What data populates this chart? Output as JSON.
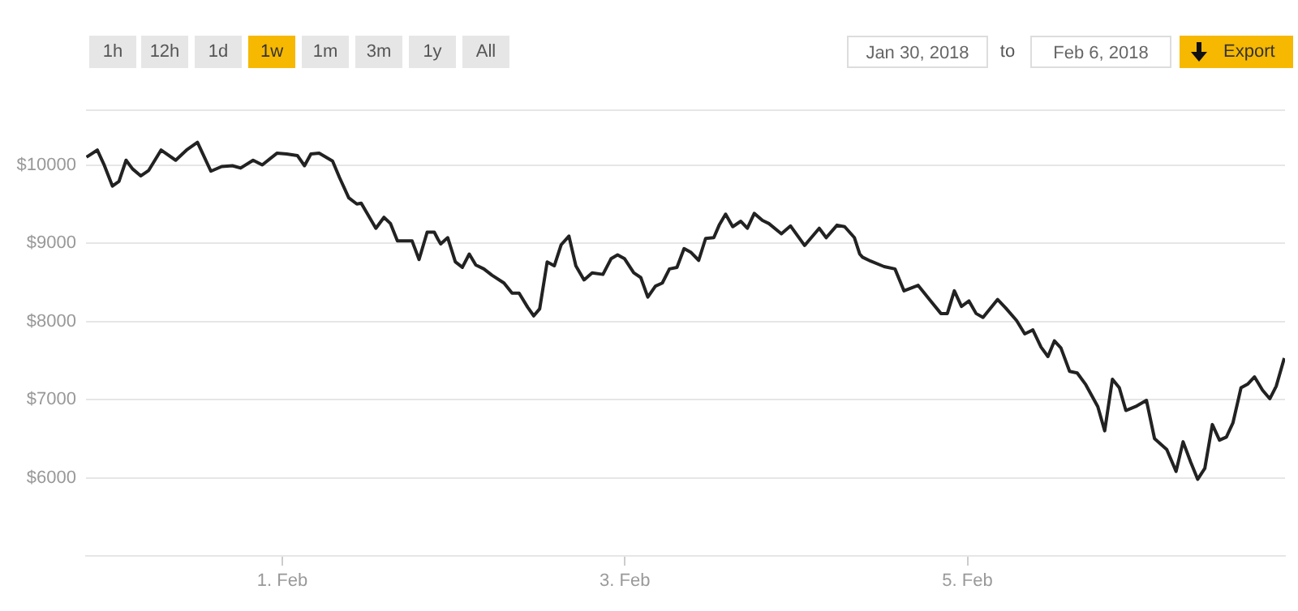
{
  "chart_data": {
    "type": "line",
    "grid": "y",
    "legend": false,
    "marker": "none",
    "line_style": "solid",
    "annotations": [
      "1h",
      "12h",
      "1d",
      "1w",
      "1m",
      "3m",
      "1y",
      "All",
      "Jan 30, 2018",
      "to",
      "Feb 6, 2018",
      "Export"
    ],
    "xlim": [
      "2018-01-30T20:30",
      "2018-02-06T20:30"
    ],
    "xticks": [
      {
        "value": "2018-02-01",
        "label": "1. Feb"
      },
      {
        "value": "2018-02-03",
        "label": "3. Feb"
      },
      {
        "value": "2018-02-05",
        "label": "5. Feb"
      }
    ],
    "ylim": [
      5000,
      10700
    ],
    "yticks": [
      {
        "value": 6000,
        "label": "$6000"
      },
      {
        "value": 7000,
        "label": "$7000"
      },
      {
        "value": 8000,
        "label": "$8000"
      },
      {
        "value": 9000,
        "label": "$9000"
      },
      {
        "value": 10000,
        "label": "$10000"
      }
    ],
    "series": [
      {
        "color": "#222222",
        "x": [
          "2018-01-30T20:34",
          "2018-01-30T22:05",
          "2018-01-30T23:00",
          "2018-01-31T00:12",
          "2018-01-31T01:07",
          "2018-01-31T02:07",
          "2018-01-31T03:01",
          "2018-01-31T04:10",
          "2018-01-31T05:17",
          "2018-01-31T07:01",
          "2018-01-31T09:04",
          "2018-01-31T10:35",
          "2018-01-31T12:07",
          "2018-01-31T14:00",
          "2018-01-31T15:31",
          "2018-01-31T17:01",
          "2018-01-31T18:10",
          "2018-01-31T19:55",
          "2018-01-31T21:12",
          "2018-01-31T23:15",
          "2018-02-01T00:37",
          "2018-02-01T02:07",
          "2018-02-01T03:07",
          "2018-02-01T04:01",
          "2018-02-01T05:10",
          "2018-02-01T07:03",
          "2018-02-01T08:01",
          "2018-02-01T09:19",
          "2018-02-01T10:27",
          "2018-02-01T11:04",
          "2018-02-01T13:07",
          "2018-02-01T14:15",
          "2018-02-01T15:10",
          "2018-02-01T16:08",
          "2018-02-01T18:11",
          "2018-02-01T19:10",
          "2018-02-01T20:18",
          "2018-02-01T21:18",
          "2018-02-01T21:49",
          "2018-02-01T22:12",
          "2018-02-01T23:11",
          "2018-02-02T00:15",
          "2018-02-02T01:14",
          "2018-02-02T02:12",
          "2018-02-02T03:07",
          "2018-02-02T04:15",
          "2018-02-02T05:23",
          "2018-02-02T07:04",
          "2018-02-02T08:12",
          "2018-02-02T09:11",
          "2018-02-02T10:23",
          "2018-02-02T11:14",
          "2018-02-02T12:04",
          "2018-02-02T13:07",
          "2018-02-02T14:07",
          "2018-02-02T15:05",
          "2018-02-02T16:10",
          "2018-02-02T17:08",
          "2018-02-02T18:17",
          "2018-02-02T19:25",
          "2018-02-02T20:56",
          "2018-02-02T22:04",
          "2018-02-02T22:59",
          "2018-02-02T23:58",
          "2018-02-03T01:15",
          "2018-02-03T02:14",
          "2018-02-03T03:13",
          "2018-02-03T04:17",
          "2018-02-03T05:15",
          "2018-02-03T06:15",
          "2018-02-03T07:18",
          "2018-02-03T08:18",
          "2018-02-03T09:17",
          "2018-02-03T10:21",
          "2018-02-03T11:19",
          "2018-02-03T12:28",
          "2018-02-03T13:13",
          "2018-02-03T14:07",
          "2018-02-03T15:07",
          "2018-02-03T16:15",
          "2018-02-03T17:10",
          "2018-02-03T18:08",
          "2018-02-03T19:17",
          "2018-02-03T20:11",
          "2018-02-03T21:56",
          "2018-02-03T23:13",
          "2018-02-04T01:11",
          "2018-02-04T03:14",
          "2018-02-04T04:13",
          "2018-02-04T05:44",
          "2018-02-04T06:48",
          "2018-02-04T08:10",
          "2018-02-04T08:55",
          "2018-02-04T09:18",
          "2018-02-04T10:26",
          "2018-02-04T12:20",
          "2018-02-04T13:51",
          "2018-02-04T15:07",
          "2018-02-04T17:06",
          "2018-02-04T18:46",
          "2018-02-04T20:17",
          "2018-02-04T21:11",
          "2018-02-04T22:10",
          "2018-02-04T23:10",
          "2018-02-05T00:13",
          "2018-02-05T01:13",
          "2018-02-05T02:11",
          "2018-02-05T04:14",
          "2018-02-05T05:22",
          "2018-02-05T06:53",
          "2018-02-05T08:02",
          "2018-02-05T09:10",
          "2018-02-05T10:19",
          "2018-02-05T11:17",
          "2018-02-05T12:11",
          "2018-02-05T13:06",
          "2018-02-05T14:19",
          "2018-02-05T15:23",
          "2018-02-05T16:35",
          "2018-02-05T18:16",
          "2018-02-05T19:14",
          "2018-02-05T20:19",
          "2018-02-05T21:17",
          "2018-02-05T22:12",
          "2018-02-05T23:34",
          "2018-02-06T01:05",
          "2018-02-06T02:13",
          "2018-02-06T03:56",
          "2018-02-06T05:14",
          "2018-02-06T06:13",
          "2018-02-06T07:17",
          "2018-02-06T08:16",
          "2018-02-06T09:16",
          "2018-02-06T10:19",
          "2018-02-06T11:19",
          "2018-02-06T12:17",
          "2018-02-06T13:12",
          "2018-02-06T14:20",
          "2018-02-06T15:19",
          "2018-02-06T16:13",
          "2018-02-06T17:21",
          "2018-02-06T18:22",
          "2018-02-06T19:16",
          "2018-02-06T20:24"
        ],
        "values": [
          10100,
          10190,
          10010,
          9730,
          9790,
          10060,
          9950,
          9860,
          9930,
          10190,
          10060,
          10190,
          10290,
          9920,
          9980,
          9990,
          9960,
          10060,
          10000,
          10150,
          10140,
          10120,
          9990,
          10140,
          10150,
          10050,
          9840,
          9580,
          9500,
          9510,
          9190,
          9330,
          9250,
          9030,
          9030,
          8790,
          9140,
          9140,
          9050,
          8990,
          9070,
          8760,
          8690,
          8860,
          8720,
          8670,
          8590,
          8490,
          8360,
          8360,
          8180,
          8070,
          8160,
          8760,
          8710,
          8980,
          9090,
          8710,
          8530,
          8620,
          8600,
          8800,
          8850,
          8800,
          8620,
          8560,
          8310,
          8450,
          8490,
          8670,
          8690,
          8930,
          8880,
          8780,
          9060,
          9070,
          9230,
          9370,
          9210,
          9280,
          9190,
          9380,
          9290,
          9250,
          9120,
          9220,
          8970,
          9190,
          9070,
          9230,
          9210,
          9070,
          8860,
          8820,
          8770,
          8700,
          8670,
          8390,
          8460,
          8270,
          8100,
          8100,
          8390,
          8190,
          8260,
          8100,
          8050,
          8280,
          8170,
          8010,
          7840,
          7890,
          7670,
          7550,
          7750,
          7660,
          7360,
          7340,
          7190,
          6910,
          6600,
          7260,
          7150,
          6860,
          6910,
          6990,
          6500,
          6360,
          6080,
          6460,
          6200,
          5980,
          6120,
          6680,
          6480,
          6520,
          6700,
          7150,
          7200,
          7290,
          7120,
          7010,
          7170,
          7530
        ]
      }
    ]
  }
}
